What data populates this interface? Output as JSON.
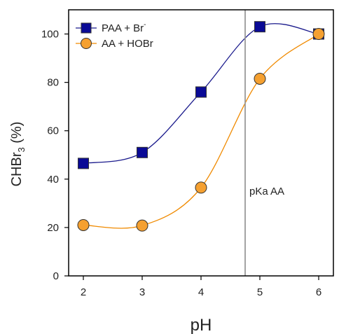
{
  "chart_data": {
    "type": "line",
    "xlabel": "pH",
    "ylabel_main": "CHBr",
    "ylabel_sub": "3",
    "ylabel_unit": " (%)",
    "xlim": [
      1.75,
      6.25
    ],
    "ylim": [
      0,
      110
    ],
    "xticks": [
      2,
      3,
      4,
      5,
      6
    ],
    "yticks": [
      0,
      20,
      40,
      60,
      80,
      100
    ],
    "grid": false,
    "legend_position": "top-left",
    "x": [
      2,
      3,
      4,
      5,
      6
    ],
    "series": [
      {
        "name": "PAA + Br",
        "name_sup": "-",
        "marker": "square",
        "color": "#1a1a8c",
        "marker_fill": "#0a0a96",
        "line_color": "#1a1a8c",
        "values": [
          46.5,
          51,
          76,
          103,
          100
        ]
      },
      {
        "name": "AA + HOBr",
        "name_sup": "",
        "marker": "circle",
        "color": "#f08a00",
        "marker_fill": "#f5a030",
        "line_color": "#f08a00",
        "values": [
          21,
          20.8,
          36.5,
          81.5,
          100
        ]
      }
    ],
    "annotations": [
      {
        "type": "vline",
        "x": 4.75,
        "label": "pKa AA",
        "label_y": 35,
        "color": "#999999"
      }
    ]
  }
}
